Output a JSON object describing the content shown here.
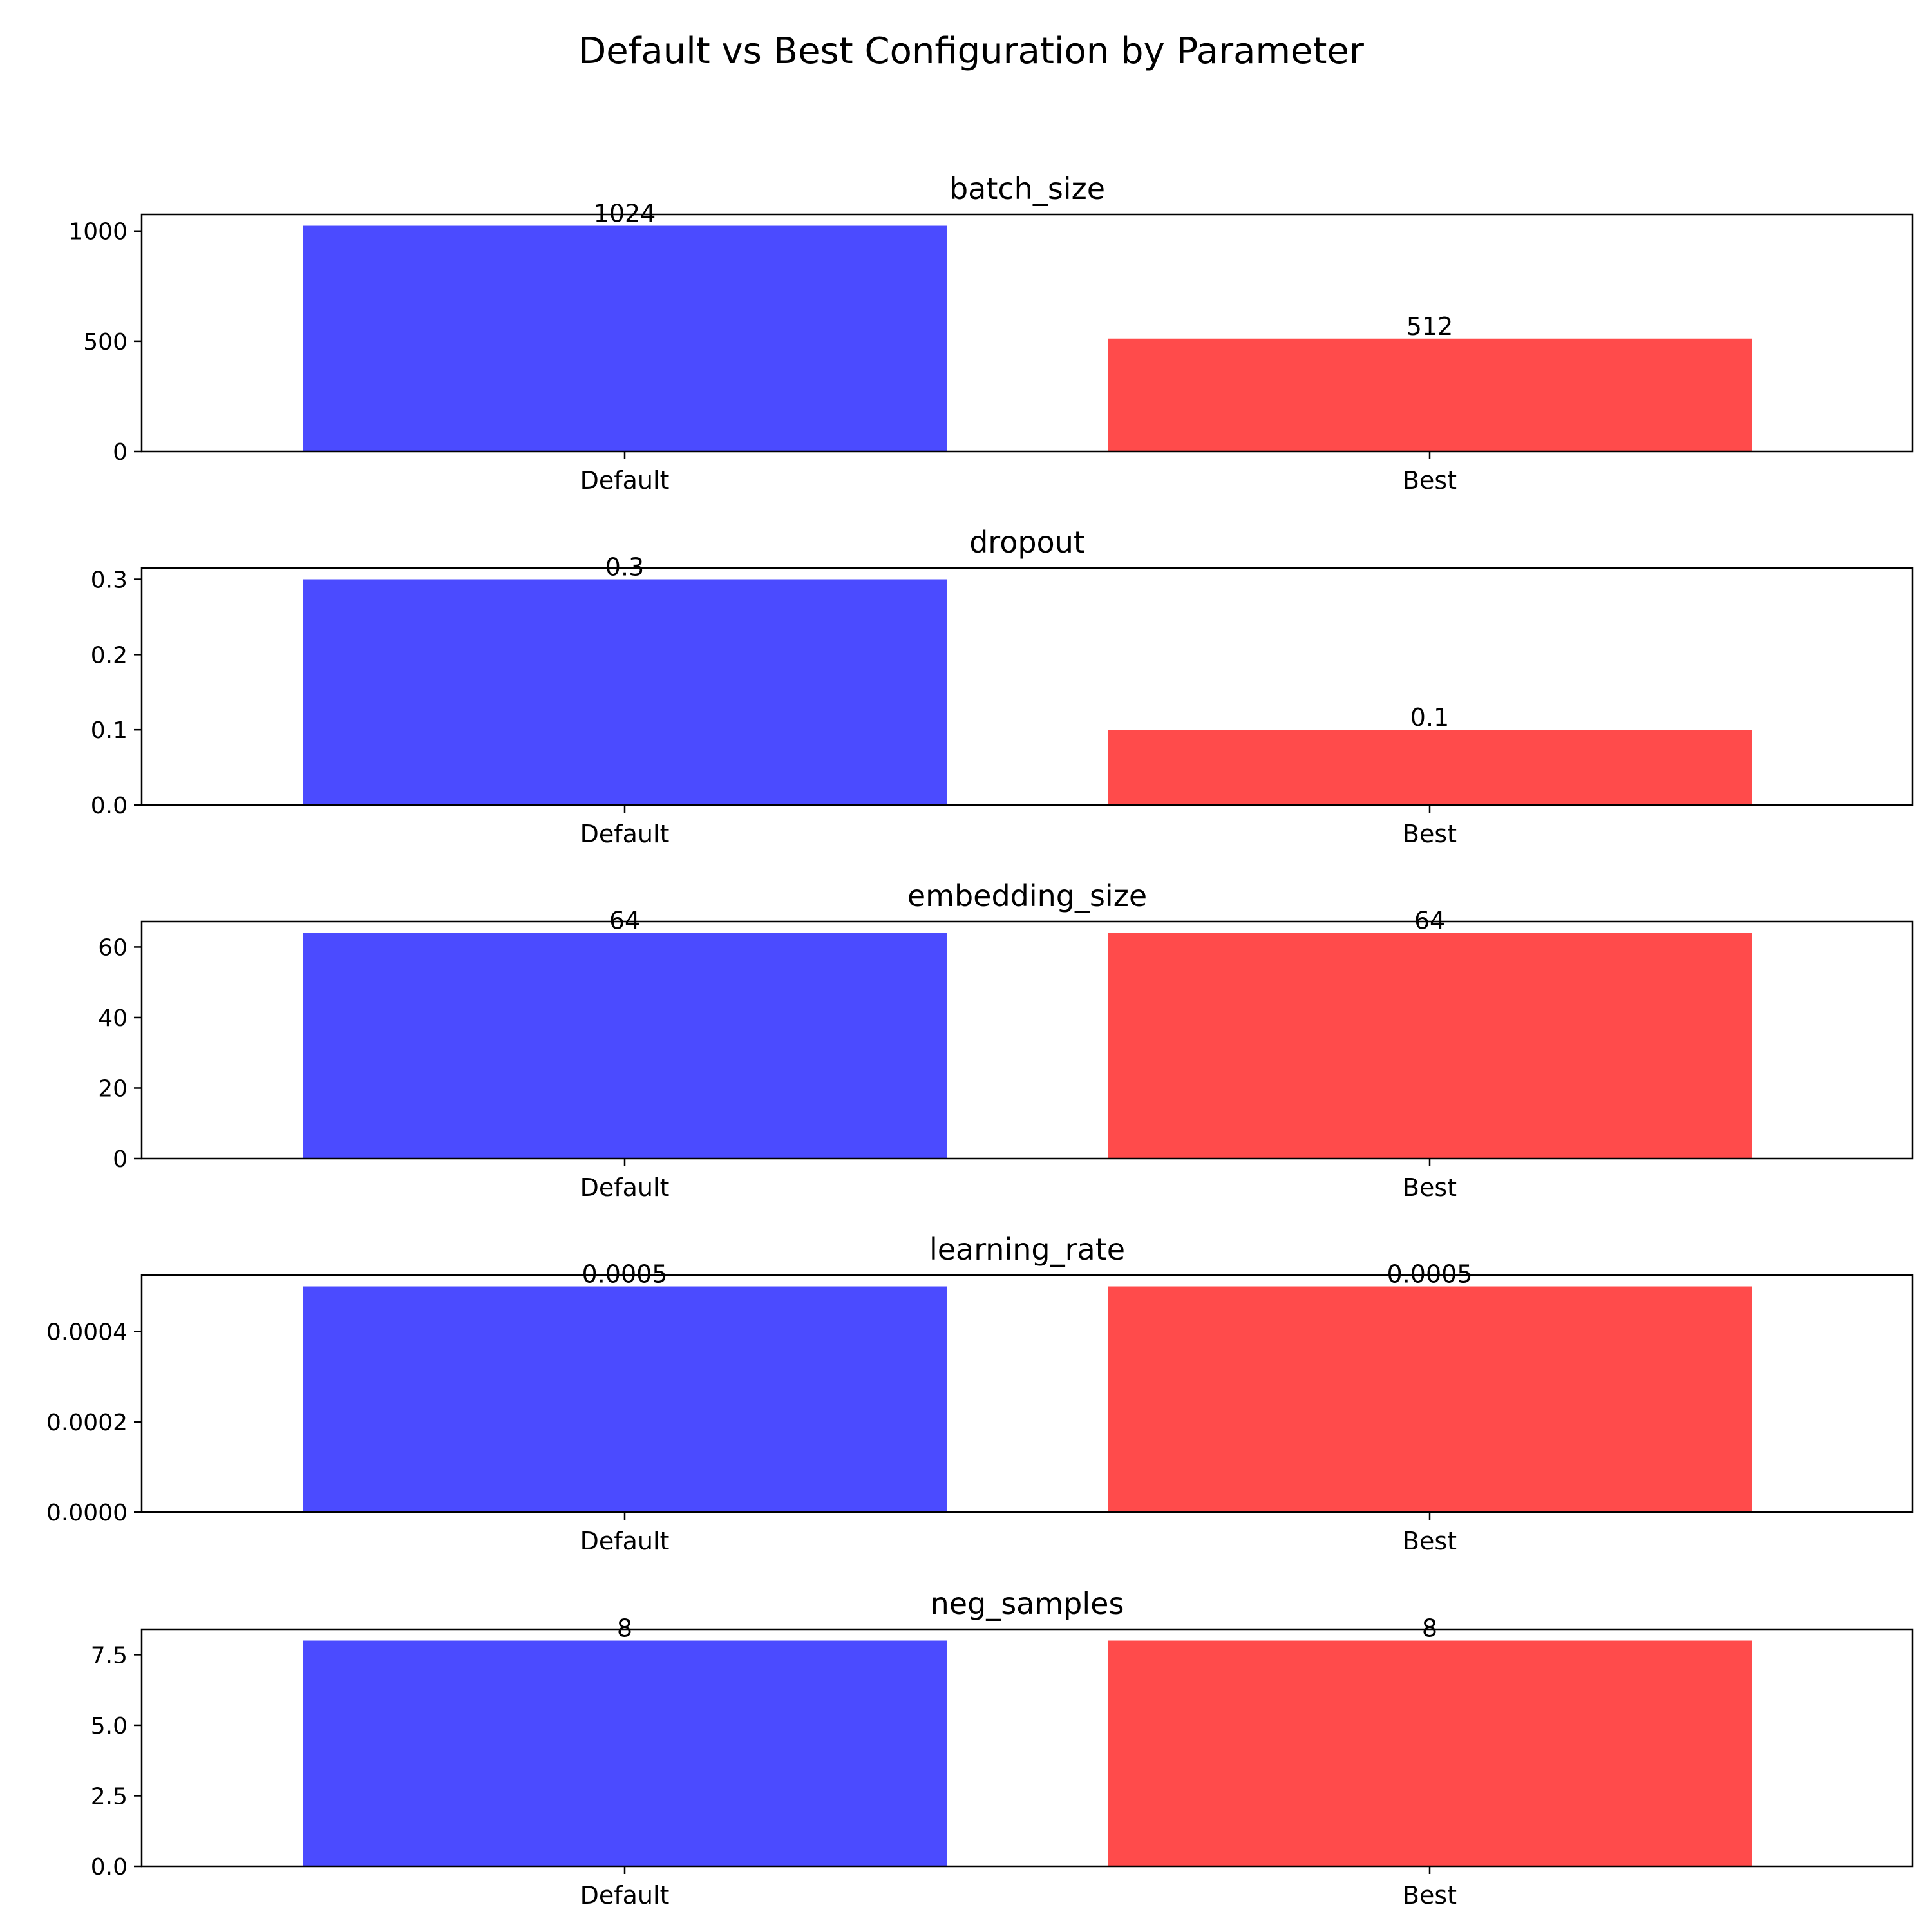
{
  "figure": {
    "title": "Default vs Best Configuration by Parameter"
  },
  "chart_data": [
    {
      "type": "bar",
      "title": "batch_size",
      "categories": [
        "Default",
        "Best"
      ],
      "values": [
        1024,
        512
      ],
      "data_labels": [
        "1024",
        "512"
      ],
      "colors": [
        "#4b4bff",
        "#ff4b4b"
      ],
      "ylim": [
        0,
        1075.2
      ],
      "yticks": [
        0,
        500,
        1000
      ],
      "ytick_labels": [
        "0",
        "500",
        "1000"
      ]
    },
    {
      "type": "bar",
      "title": "dropout",
      "categories": [
        "Default",
        "Best"
      ],
      "values": [
        0.3,
        0.1
      ],
      "data_labels": [
        "0.3",
        "0.1"
      ],
      "colors": [
        "#4b4bff",
        "#ff4b4b"
      ],
      "ylim": [
        0,
        0.315
      ],
      "yticks": [
        0,
        0.1,
        0.2,
        0.3
      ],
      "ytick_labels": [
        "0.0",
        "0.1",
        "0.2",
        "0.3"
      ]
    },
    {
      "type": "bar",
      "title": "embedding_size",
      "categories": [
        "Default",
        "Best"
      ],
      "values": [
        64,
        64
      ],
      "data_labels": [
        "64",
        "64"
      ],
      "colors": [
        "#4b4bff",
        "#ff4b4b"
      ],
      "ylim": [
        0,
        67.2
      ],
      "yticks": [
        0,
        20,
        40,
        60
      ],
      "ytick_labels": [
        "0",
        "20",
        "40",
        "60"
      ]
    },
    {
      "type": "bar",
      "title": "learning_rate",
      "categories": [
        "Default",
        "Best"
      ],
      "values": [
        0.0005,
        0.0005
      ],
      "data_labels": [
        "0.0005",
        "0.0005"
      ],
      "colors": [
        "#4b4bff",
        "#ff4b4b"
      ],
      "ylim": [
        0,
        0.000525
      ],
      "yticks": [
        0,
        0.0002,
        0.0004
      ],
      "ytick_labels": [
        "0.0000",
        "0.0002",
        "0.0004"
      ]
    },
    {
      "type": "bar",
      "title": "neg_samples",
      "categories": [
        "Default",
        "Best"
      ],
      "values": [
        8,
        8
      ],
      "data_labels": [
        "8",
        "8"
      ],
      "colors": [
        "#4b4bff",
        "#ff4b4b"
      ],
      "ylim": [
        0,
        8.4
      ],
      "yticks": [
        0,
        2.5,
        5,
        7.5
      ],
      "ytick_labels": [
        "0.0",
        "2.5",
        "5.0",
        "7.5"
      ]
    }
  ]
}
